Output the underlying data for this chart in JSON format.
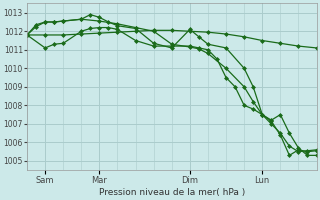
{
  "background_color": "#cce9e9",
  "grid_color": "#aacccc",
  "line_color": "#1a6b1a",
  "marker_color": "#1a6b1a",
  "xlabel": "Pression niveau de la mer( hPa )",
  "ylim": [
    1004.5,
    1013.5
  ],
  "yticks": [
    1005,
    1006,
    1007,
    1008,
    1009,
    1010,
    1011,
    1012,
    1013
  ],
  "xlim": [
    0,
    96
  ],
  "xtick_positions": [
    6,
    24,
    54,
    78
  ],
  "xtick_labels": [
    "Sam",
    "Mar",
    "Dim",
    "Lun"
  ],
  "vline_positions": [
    6,
    24,
    54,
    78
  ],
  "s1_x": [
    0,
    6,
    12,
    18,
    24,
    30,
    36,
    42,
    48,
    54,
    60,
    66,
    72,
    78,
    84,
    90,
    96
  ],
  "s1_y": [
    1011.8,
    1011.8,
    1011.8,
    1011.85,
    1011.9,
    1011.95,
    1012.0,
    1012.05,
    1012.05,
    1012.0,
    1011.95,
    1011.85,
    1011.7,
    1011.5,
    1011.35,
    1011.2,
    1011.1
  ],
  "s2_x": [
    0,
    3,
    6,
    9,
    12,
    18,
    24,
    30,
    36,
    42,
    48,
    54,
    57,
    60,
    66,
    72,
    75,
    78,
    81,
    84,
    87,
    90,
    93,
    96
  ],
  "s2_y": [
    1011.8,
    1012.25,
    1012.5,
    1012.5,
    1012.55,
    1012.65,
    1012.55,
    1012.4,
    1012.2,
    1012.0,
    1011.3,
    1011.15,
    1011.05,
    1010.8,
    1010.0,
    1009.0,
    1008.2,
    1007.5,
    1007.2,
    1007.5,
    1006.5,
    1005.7,
    1005.3,
    1005.3
  ],
  "s3_x": [
    0,
    3,
    6,
    9,
    12,
    18,
    21,
    24,
    27,
    30,
    36,
    42,
    48,
    54,
    57,
    60,
    66,
    72,
    75,
    78,
    81,
    84,
    87,
    90,
    93,
    96
  ],
  "s3_y": [
    1011.8,
    1012.35,
    1012.5,
    1012.5,
    1012.55,
    1012.65,
    1012.9,
    1012.75,
    1012.5,
    1012.3,
    1012.15,
    1011.35,
    1011.1,
    1012.1,
    1011.7,
    1011.3,
    1011.1,
    1010.0,
    1009.0,
    1007.5,
    1007.15,
    1006.4,
    1005.3,
    1005.6,
    1005.5,
    1005.55
  ],
  "s4_x": [
    0,
    6,
    9,
    12,
    18,
    21,
    24,
    27,
    30,
    36,
    42,
    48,
    54,
    57,
    60,
    63,
    66,
    69,
    72,
    75,
    78,
    81,
    84,
    87,
    90,
    93,
    96
  ],
  "s4_y": [
    1011.8,
    1011.1,
    1011.3,
    1011.35,
    1012.0,
    1012.15,
    1012.2,
    1012.2,
    1012.1,
    1011.5,
    1011.2,
    1011.2,
    1011.2,
    1011.1,
    1011.0,
    1010.5,
    1009.5,
    1009.0,
    1008.0,
    1007.8,
    1007.5,
    1007.0,
    1006.5,
    1005.8,
    1005.5,
    1005.55,
    1005.6
  ]
}
